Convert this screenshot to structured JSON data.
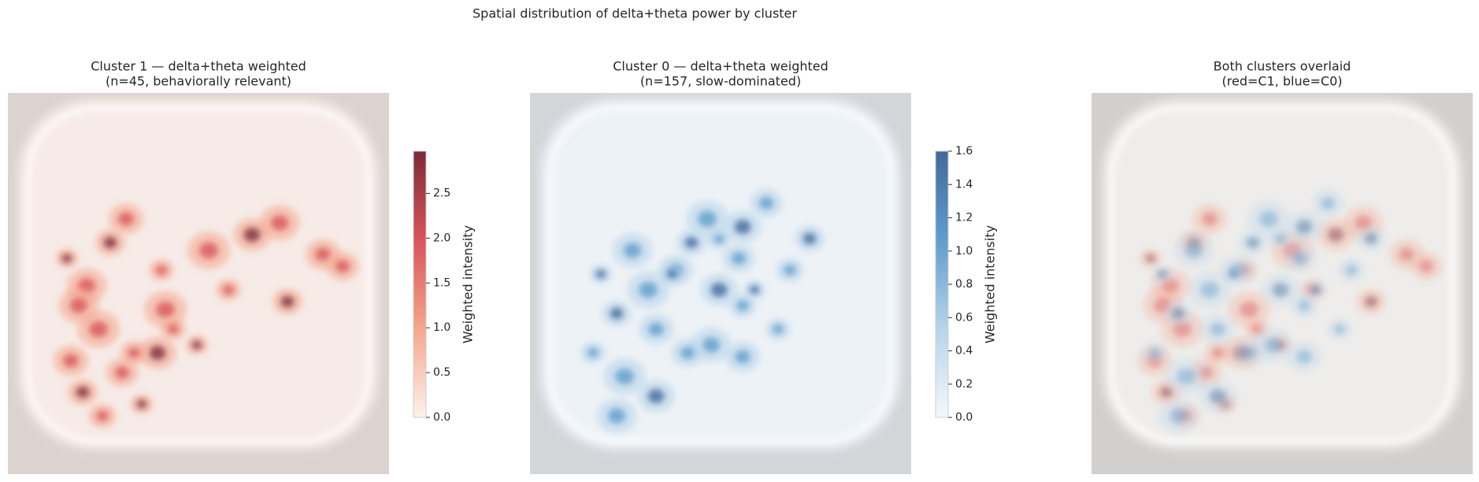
{
  "title": "Spatial distribution of delta+theta power by cluster",
  "chart_data": [
    {
      "type": "image",
      "title": [
        "Cluster 1 — delta+theta weighted",
        "(n=45, behaviorally relevant)"
      ],
      "colorbar": {
        "label": "Weighted intensity",
        "lim": [
          0,
          2.97
        ],
        "ticks": [
          {
            "value": 0,
            "label": "0.0"
          },
          0.5,
          {
            "value": 1,
            "label": "1.0"
          },
          1.5,
          {
            "value": 2,
            "label": "2.0"
          },
          2.5
        ],
        "colors": [
          "#fdf1ec",
          "#f5a68c",
          "#d9545a",
          "#7b2b37"
        ]
      }
    },
    {
      "type": "image",
      "title": [
        "Cluster 0 — delta+theta weighted",
        "(n=157, slow-dominated)"
      ],
      "colorbar": {
        "label": "Weighted intensity",
        "lim": [
          0,
          1.6
        ],
        "ticks": [
          {
            "value": 0,
            "label": "0.0"
          },
          0.2,
          0.4,
          0.6,
          0.8,
          {
            "value": 1,
            "label": "1.0"
          },
          1.2,
          1.4,
          1.6
        ],
        "colors": [
          "#f4f8fc",
          "#b7d4ea",
          "#5f9dcc",
          "#41699b"
        ]
      }
    },
    {
      "type": "image",
      "title": [
        "Both clusters overlaid",
        "(red=C1, blue=C0)"
      ]
    }
  ]
}
